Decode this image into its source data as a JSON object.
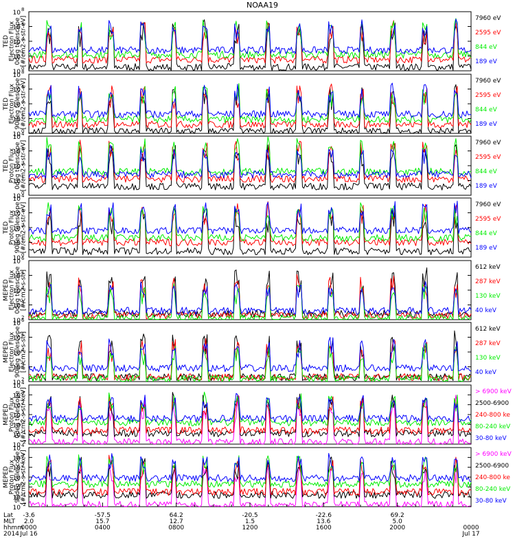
{
  "title": "NOAA19",
  "colors": {
    "black": "#000000",
    "red": "#ff0000",
    "green": "#00ee00",
    "blue": "#0000ff",
    "magenta": "#ff00ff"
  },
  "chart_data": [
    {
      "type": "line",
      "ylabel": [
        "TED",
        "Electron Flux",
        "0deg telescope",
        "[#/cm2-s-str-eV]"
      ],
      "yticks": [
        {
          "exp": "0"
        },
        {
          "exp": "2"
        },
        {
          "exp": "4"
        },
        {
          "exp": "6"
        },
        {
          "exp": "8"
        }
      ],
      "ylim_log10": [
        0,
        8
      ],
      "legend": [
        {
          "label": "7960 eV",
          "color": "#000000"
        },
        {
          "label": "2595 eV",
          "color": "#ff0000"
        },
        {
          "label": "844 eV",
          "color": "#00ee00"
        },
        {
          "label": "189 eV",
          "color": "#0000ff"
        }
      ],
      "series_levels_log10": [
        {
          "name": "7960 eV",
          "base": 0.5
        },
        {
          "name": "2595 eV",
          "base": 1.5
        },
        {
          "name": "844 eV",
          "base": 2.2
        },
        {
          "name": "189 eV",
          "base": 2.8
        }
      ]
    },
    {
      "type": "line",
      "ylabel": [
        "TED",
        "Electron Flux",
        "90deg telescope",
        "[#/cm2-s-str-eV]"
      ],
      "yticks": [
        {
          "exp": "0"
        },
        {
          "exp": "2"
        },
        {
          "exp": "4"
        },
        {
          "exp": "6"
        },
        {
          "exp": "8"
        }
      ],
      "ylim_log10": [
        0,
        8
      ],
      "legend": [
        {
          "label": "7960 eV",
          "color": "#000000"
        },
        {
          "label": "2595 eV",
          "color": "#ff0000"
        },
        {
          "label": "844 eV",
          "color": "#00ee00"
        },
        {
          "label": "189 eV",
          "color": "#0000ff"
        }
      ],
      "series_levels_log10": [
        {
          "name": "7960 eV",
          "base": 0.3
        },
        {
          "name": "2595 eV",
          "base": 1.2
        },
        {
          "name": "844 eV",
          "base": 1.9
        },
        {
          "name": "189 eV",
          "base": 2.6
        }
      ]
    },
    {
      "type": "line",
      "ylabel": [
        "TED",
        "Proton Flux",
        "0deg telescope",
        "[#/cm2-s-str-eV]"
      ],
      "yticks": [
        {
          "exp": "0"
        },
        {
          "exp": "1"
        },
        {
          "exp": "2"
        },
        {
          "exp": "3"
        },
        {
          "exp": "4"
        }
      ],
      "ylim_log10": [
        0,
        4
      ],
      "legend": [
        {
          "label": "7960 eV",
          "color": "#000000"
        },
        {
          "label": "2595 eV",
          "color": "#ff0000"
        },
        {
          "label": "844 eV",
          "color": "#00ee00"
        },
        {
          "label": "189 eV",
          "color": "#0000ff"
        }
      ],
      "series_levels_log10": [
        {
          "name": "7960 eV",
          "base": 0.6
        },
        {
          "name": "2595 eV",
          "base": 1.1
        },
        {
          "name": "844 eV",
          "base": 1.6
        },
        {
          "name": "189 eV",
          "base": 1.4
        }
      ]
    },
    {
      "type": "line",
      "ylabel": [
        "TED",
        "Proton Flux",
        "90deg telescope",
        "[#/cm2-s-str-eV]"
      ],
      "yticks": [
        {
          "exp": "0"
        },
        {
          "exp": "1"
        },
        {
          "exp": "2"
        },
        {
          "exp": "3"
        },
        {
          "exp": "4"
        }
      ],
      "ylim_log10": [
        0,
        4
      ],
      "legend": [
        {
          "label": "7960 eV",
          "color": "#000000"
        },
        {
          "label": "2595 eV",
          "color": "#ff0000"
        },
        {
          "label": "844 eV",
          "color": "#00ee00"
        },
        {
          "label": "189 eV",
          "color": "#0000ff"
        }
      ],
      "series_levels_log10": [
        {
          "name": "7960 eV",
          "base": 0.4
        },
        {
          "name": "2595 eV",
          "base": 1.0
        },
        {
          "name": "844 eV",
          "base": 1.3
        },
        {
          "name": "189 eV",
          "base": 1.8
        }
      ]
    },
    {
      "type": "line",
      "ylabel": [
        "MEPED",
        "Electron Flux",
        "0deg telescope",
        "[#/cm2-s-str]"
      ],
      "yticks": [
        {
          "exp": "2"
        },
        {
          "exp": "3"
        },
        {
          "exp": "4"
        },
        {
          "exp": "5"
        },
        {
          "exp": "6"
        }
      ],
      "ylim_log10": [
        2,
        6
      ],
      "legend": [
        {
          "label": "612 keV",
          "color": "#000000"
        },
        {
          "label": "287 keV",
          "color": "#ff0000"
        },
        {
          "label": "130 keV",
          "color": "#00ee00"
        },
        {
          "label": "40 keV",
          "color": "#0000ff"
        }
      ],
      "series_levels_log10": [
        {
          "name": "612 keV",
          "base": 2.4
        },
        {
          "name": "287 keV",
          "base": 2.3
        },
        {
          "name": "130 keV",
          "base": 2.1
        },
        {
          "name": "40 keV",
          "base": 2.6
        }
      ]
    },
    {
      "type": "line",
      "ylabel": [
        "MEPED",
        "Electron Flux",
        "90deg telescope",
        "[#/cm2-s-str]"
      ],
      "yticks": [
        {
          "exp": "2"
        },
        {
          "exp": "3"
        },
        {
          "exp": "4"
        },
        {
          "exp": "5"
        },
        {
          "exp": "6"
        }
      ],
      "ylim_log10": [
        2,
        6
      ],
      "legend": [
        {
          "label": "612 keV",
          "color": "#000000"
        },
        {
          "label": "287 keV",
          "color": "#ff0000"
        },
        {
          "label": "130 keV",
          "color": "#00ee00"
        },
        {
          "label": "40 keV",
          "color": "#0000ff"
        }
      ],
      "series_levels_log10": [
        {
          "name": "612 keV",
          "base": 2.3
        },
        {
          "name": "287 keV",
          "base": 2.3
        },
        {
          "name": "130 keV",
          "base": 2.2
        },
        {
          "name": "40 keV",
          "base": 2.9
        }
      ]
    },
    {
      "type": "line",
      "ylabel": [
        "MEPED",
        "Proton Flux",
        "0deg telescope",
        "[#/cm2-s-str-keV]"
      ],
      "yticks": [
        {
          "exp": "-2"
        },
        {
          "exp": "-1"
        },
        {
          "exp": "0"
        },
        {
          "exp": "1"
        },
        {
          "exp": "2"
        },
        {
          "exp": "3"
        },
        {
          "exp": "4"
        }
      ],
      "ylim_log10": [
        -2,
        4
      ],
      "legend": [
        {
          "label": "> 6900 keV",
          "color": "#ff00ff"
        },
        {
          "label": "2500-6900",
          "color": "#000000"
        },
        {
          "label": "240-800 ke",
          "color": "#ff0000"
        },
        {
          "label": "80-240 keV",
          "color": "#00ee00"
        },
        {
          "label": "30-80 keV",
          "color": "#0000ff"
        }
      ],
      "series_levels_log10": [
        {
          "name": "> 6900 keV",
          "base": -1.8
        },
        {
          "name": "2500-6900",
          "base": -0.9
        },
        {
          "name": "240-800 ke",
          "base": -0.6
        },
        {
          "name": "80-240 keV",
          "base": 0.2
        },
        {
          "name": "30-80 keV",
          "base": 0.6
        }
      ]
    },
    {
      "type": "line",
      "ylabel": [
        "MEPED",
        "Proton Flux",
        "90deg telescope",
        "[#/cm2-s-str-keV]"
      ],
      "yticks": [
        {
          "exp": "-2"
        },
        {
          "exp": "-1"
        },
        {
          "exp": "0"
        },
        {
          "exp": "1"
        },
        {
          "exp": "2"
        },
        {
          "exp": "3"
        },
        {
          "exp": "4"
        }
      ],
      "ylim_log10": [
        -2,
        4
      ],
      "legend": [
        {
          "label": "> 6900 keV",
          "color": "#ff00ff"
        },
        {
          "label": "2500-6900",
          "color": "#000000"
        },
        {
          "label": "240-800 ke",
          "color": "#ff0000"
        },
        {
          "label": "80-240 keV",
          "color": "#00ee00"
        },
        {
          "label": "30-80 keV",
          "color": "#0000ff"
        }
      ],
      "series_levels_log10": [
        {
          "name": "> 6900 keV",
          "base": -1.8
        },
        {
          "name": "2500-6900",
          "base": -0.8
        },
        {
          "name": "240-800 ke",
          "base": -0.5
        },
        {
          "name": "80-240 keV",
          "base": 0.3
        },
        {
          "name": "30-80 keV",
          "base": 0.9
        }
      ]
    }
  ],
  "x_axis": {
    "row_labels": [
      "Lat",
      "MLT",
      "hhmm",
      "2014"
    ],
    "columns": [
      {
        "lat": "-3.6",
        "mlt": "2.0",
        "hhmm": "0000",
        "date": "Jul 16"
      },
      {
        "lat": "-57.5",
        "mlt": "15.7",
        "hhmm": "0400",
        "date": ""
      },
      {
        "lat": "64.2",
        "mlt": "12.7",
        "hhmm": "0800",
        "date": ""
      },
      {
        "lat": "-20.5",
        "mlt": "1.5",
        "hhmm": "1200",
        "date": ""
      },
      {
        "lat": "-22.6",
        "mlt": "13.6",
        "hhmm": "1600",
        "date": ""
      },
      {
        "lat": "69.2",
        "mlt": "5.0",
        "hhmm": "2000",
        "date": ""
      },
      {
        "lat": "",
        "mlt": "",
        "hhmm": "0000",
        "date": "Jul 17"
      }
    ],
    "range_hours": [
      0,
      24
    ]
  }
}
